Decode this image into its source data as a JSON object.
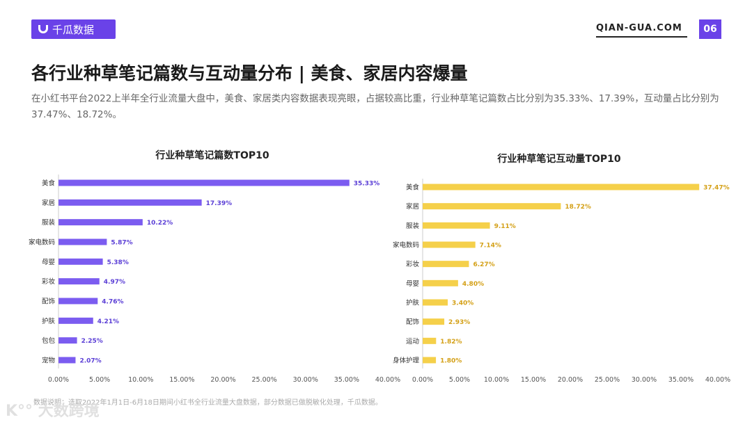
{
  "header": {
    "brand": "千瓜数据",
    "site": "QIAN-GUA.COM",
    "page_number": "06"
  },
  "title": "各行业种草笔记篇数与互动量分布 | 美食、家居内容爆量",
  "description": "在小红书平台2022上半年全行业流量大盘中，美食、家居类内容数据表现亮眼，占据较高比重，行业种草笔记篇数占比分别为35.33%、17.39%，互动量占比分别为37.47%、18.72%。",
  "footnote": "数据说明：选取2022年1月1日-6月18日期间小红书全行业流量大盘数据，部分数据已做脱敏化处理，千瓜数据。",
  "watermark": "大数跨境",
  "chart_data": [
    {
      "type": "bar",
      "orientation": "horizontal",
      "title": "行业种草笔记篇数TOP10",
      "color": "#7b5cf0",
      "label_color": "#5b3fd6",
      "categories": [
        "美食",
        "家居",
        "服装",
        "家电数码",
        "母婴",
        "彩妆",
        "配饰",
        "护肤",
        "包包",
        "宠物"
      ],
      "values": [
        35.33,
        17.39,
        10.22,
        5.87,
        5.38,
        4.97,
        4.76,
        4.21,
        2.25,
        2.07
      ],
      "labels": [
        "35.33%",
        "17.39%",
        "10.22%",
        "5.87%",
        "5.38%",
        "4.97%",
        "4.76%",
        "4.21%",
        "2.25%",
        "2.07%"
      ],
      "xlim": [
        0,
        40
      ],
      "ticks": [
        "0.00%",
        "5.00%",
        "10.00%",
        "15.00%",
        "20.00%",
        "25.00%",
        "30.00%",
        "35.00%",
        "40.00%"
      ]
    },
    {
      "type": "bar",
      "orientation": "horizontal",
      "title": "行业种草笔记互动量TOP10",
      "color": "#f5d04a",
      "label_color": "#d4a017",
      "categories": [
        "美食",
        "家居",
        "服装",
        "家电数码",
        "彩妆",
        "母婴",
        "护肤",
        "配饰",
        "运动",
        "身体护理"
      ],
      "values": [
        37.47,
        18.72,
        9.11,
        7.14,
        6.27,
        4.8,
        3.4,
        2.93,
        1.82,
        1.8
      ],
      "labels": [
        "37.47%",
        "18.72%",
        "9.11%",
        "7.14%",
        "6.27%",
        "4.80%",
        "3.40%",
        "2.93%",
        "1.82%",
        "1.80%"
      ],
      "xlim": [
        0,
        40
      ],
      "ticks": [
        "0.00%",
        "5.00%",
        "10.00%",
        "15.00%",
        "20.00%",
        "25.00%",
        "30.00%",
        "35.00%",
        "40.00%"
      ]
    }
  ]
}
